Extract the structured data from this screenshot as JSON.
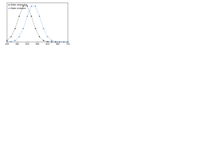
{
  "chart_data": {
    "type": "line",
    "x": [
      400,
      420,
      440,
      460,
      480,
      500,
      520,
      540,
      560,
      580,
      600,
      620,
      640,
      660,
      680,
      700
    ],
    "series": [
      {
        "name": "Water absorption",
        "color": "#000000",
        "values": [
          0.04,
          0.14,
          0.36,
          0.69,
          0.96,
          0.96,
          0.69,
          0.36,
          0.14,
          0.04,
          0.01,
          0,
          0,
          0,
          0,
          0
        ]
      },
      {
        "name": "Water emission",
        "color": "#1f5fbf",
        "values": [
          0,
          0.01,
          0.04,
          0.14,
          0.36,
          0.69,
          0.96,
          0.96,
          0.69,
          0.36,
          0.14,
          0.04,
          0.01,
          0,
          0,
          0
        ]
      }
    ],
    "xlim": [
      400,
      700
    ],
    "xticks": [
      400,
      450,
      500,
      550,
      600,
      650,
      700
    ],
    "ylim": [
      0,
      1.05
    ],
    "legend": "upper left"
  }
}
